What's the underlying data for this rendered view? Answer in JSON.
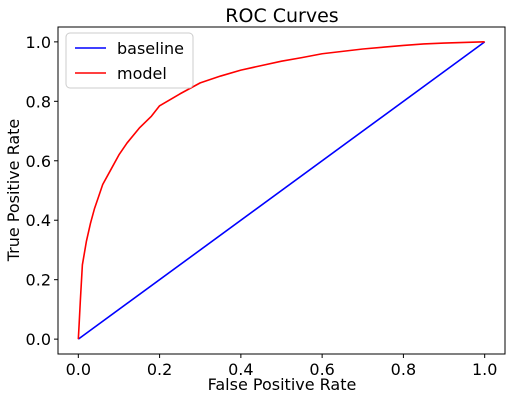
{
  "chart_data": {
    "type": "line",
    "title": "ROC Curves",
    "xlabel": "False Positive Rate",
    "ylabel": "True Positive Rate",
    "xlim": [
      -0.05,
      1.05
    ],
    "ylim": [
      -0.05,
      1.05
    ],
    "xticks": [
      "0.0",
      "0.2",
      "0.4",
      "0.6",
      "0.8",
      "1.0"
    ],
    "yticks": [
      "0.0",
      "0.2",
      "0.4",
      "0.6",
      "0.8",
      "1.0"
    ],
    "grid": false,
    "legend_position": "top-left",
    "series": [
      {
        "name": "baseline",
        "color": "#0000ff",
        "x": [
          0,
          1
        ],
        "y": [
          0,
          1
        ]
      },
      {
        "name": "model",
        "color": "#ff0000",
        "x": [
          0,
          0.002,
          0.005,
          0.01,
          0.02,
          0.03,
          0.04,
          0.05,
          0.06,
          0.08,
          0.1,
          0.12,
          0.15,
          0.18,
          0.2,
          0.25,
          0.3,
          0.35,
          0.4,
          0.45,
          0.5,
          0.55,
          0.6,
          0.65,
          0.7,
          0.75,
          0.8,
          0.85,
          0.9,
          0.95,
          1.0
        ],
        "y": [
          0,
          0.05,
          0.13,
          0.25,
          0.33,
          0.39,
          0.44,
          0.48,
          0.52,
          0.57,
          0.62,
          0.66,
          0.71,
          0.75,
          0.785,
          0.825,
          0.862,
          0.885,
          0.905,
          0.92,
          0.935,
          0.947,
          0.96,
          0.968,
          0.976,
          0.982,
          0.988,
          0.993,
          0.996,
          0.998,
          1.0
        ]
      }
    ]
  }
}
